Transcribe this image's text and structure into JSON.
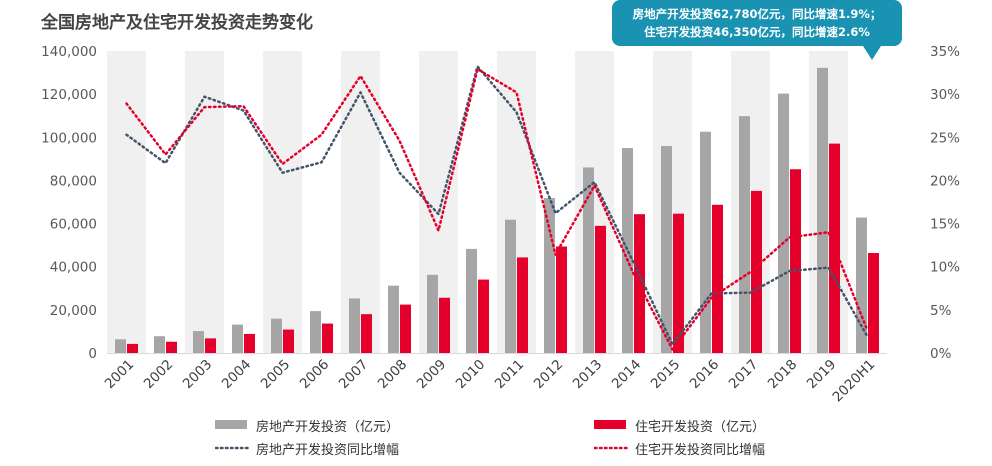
{
  "title": "全国房地产及住宅开发投资走势变化",
  "callout": {
    "line1": "房地产开发投资62,780亿元，同比增速1.9%；",
    "line2": "住宅开发投资46,350亿元，同比增速2.6%"
  },
  "colors": {
    "realestate_bar": "#a6a6a6",
    "housing_bar": "#e4002b",
    "realestate_growth_line": "#44546a",
    "housing_growth_line": "#e4002b",
    "band": "#f0f0f0",
    "callout_bg": "#1a93b3"
  },
  "legend": {
    "realestate_bar": "房地产开发投资（亿元）",
    "housing_bar": "住宅开发投资（亿元）",
    "realestate_growth": "房地产开发投资同比增幅",
    "housing_growth": "住宅开发投资同比增幅"
  },
  "chart_data": {
    "type": "bar+line",
    "title": "全国房地产及住宅开发投资走势变化",
    "categories": [
      "2001",
      "2002",
      "2003",
      "2004",
      "2005",
      "2006",
      "2007",
      "2008",
      "2009",
      "2010",
      "2011",
      "2012",
      "2013",
      "2014",
      "2015",
      "2016",
      "2017",
      "2018",
      "2019",
      "2020H1"
    ],
    "y_left": {
      "min": 0,
      "max": 140000,
      "ticks": [
        "0",
        "20,000",
        "40,000",
        "60,000",
        "80,000",
        "100,000",
        "120,000",
        "140,000"
      ]
    },
    "y_right": {
      "min": 0,
      "max": 35,
      "ticks": [
        "0%",
        "5%",
        "10%",
        "15%",
        "20%",
        "25%",
        "30%",
        "35%"
      ]
    },
    "series": [
      {
        "name": "房地产开发投资（亿元）",
        "kind": "bar",
        "axis": "left",
        "values": [
          6344,
          7791,
          10154,
          13158,
          15909,
          19423,
          25289,
          31203,
          36242,
          48259,
          61797,
          71804,
          86013,
          95036,
          95979,
          102581,
          109799,
          120264,
          132194,
          62780
        ]
      },
      {
        "name": "住宅开发投资（亿元）",
        "kind": "bar",
        "axis": "left",
        "values": [
          4217,
          5227,
          6777,
          8837,
          10861,
          13638,
          18005,
          22441,
          25614,
          34038,
          44308,
          49374,
          58951,
          64352,
          64595,
          68704,
          75148,
          85192,
          97071,
          46350
        ]
      },
      {
        "name": "房地产开发投资同比增幅",
        "kind": "line",
        "axis": "right",
        "values": [
          25.3,
          22.0,
          29.7,
          28.1,
          20.9,
          22.1,
          30.2,
          20.9,
          16.1,
          33.2,
          27.9,
          16.2,
          19.8,
          10.5,
          1.0,
          6.9,
          7.0,
          9.5,
          9.9,
          1.9
        ]
      },
      {
        "name": "住宅开发投资同比增幅",
        "kind": "line",
        "axis": "right",
        "values": [
          28.9,
          23.0,
          28.5,
          28.6,
          21.9,
          25.3,
          32.1,
          24.6,
          14.2,
          32.9,
          30.2,
          11.4,
          19.4,
          9.2,
          0.4,
          6.4,
          9.4,
          13.4,
          14.0,
          2.6
        ]
      }
    ]
  }
}
